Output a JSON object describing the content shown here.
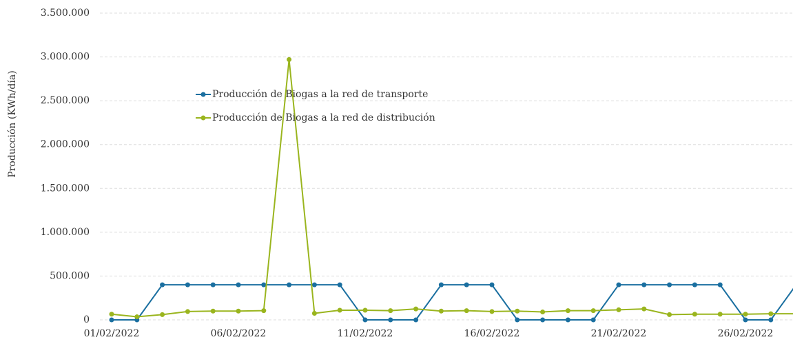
{
  "chart_data": {
    "type": "line",
    "y_label": "Producción (KWh/día)",
    "categories": [
      "01/02/2022",
      null,
      null,
      null,
      null,
      "06/02/2022",
      null,
      null,
      null,
      null,
      "11/02/2022",
      null,
      null,
      null,
      null,
      "16/02/2022",
      null,
      null,
      null,
      null,
      "21/02/2022",
      null,
      null,
      null,
      null,
      "26/02/2022",
      null,
      null
    ],
    "series": [
      {
        "name": "Producción de Biogas a la red de transporte",
        "color": "#1a6fa0",
        "values": [
          0,
          0,
          400000,
          400000,
          400000,
          400000,
          400000,
          400000,
          400000,
          400000,
          0,
          0,
          0,
          400000,
          400000,
          400000,
          0,
          0,
          0,
          0,
          400000,
          400000,
          400000,
          400000,
          400000,
          0,
          0,
          400000
        ]
      },
      {
        "name": "Producción de Biogas a la red de distribución",
        "color": "#9ab51e",
        "values": [
          65000,
          35000,
          60000,
          95000,
          100000,
          100000,
          105000,
          2970000,
          75000,
          110000,
          110000,
          105000,
          125000,
          100000,
          105000,
          95000,
          100000,
          90000,
          105000,
          105000,
          115000,
          125000,
          60000,
          65000,
          65000,
          65000,
          70000,
          70000
        ]
      }
    ],
    "ylim": [
      0,
      3500000
    ],
    "yticks": [
      0,
      {
        "value": 500000,
        "label": "500.000"
      },
      {
        "value": 1000000,
        "label": "1.000.000"
      },
      {
        "value": 1500000,
        "label": "1.500.000"
      },
      {
        "value": 2000000,
        "label": "2.000.000"
      },
      {
        "value": 2500000,
        "label": "2.500.000"
      },
      {
        "value": 3000000,
        "label": "3.000.000"
      },
      {
        "value": 3500000,
        "label": "3.500.000"
      }
    ],
    "grid": true,
    "legend": "upper-left"
  }
}
